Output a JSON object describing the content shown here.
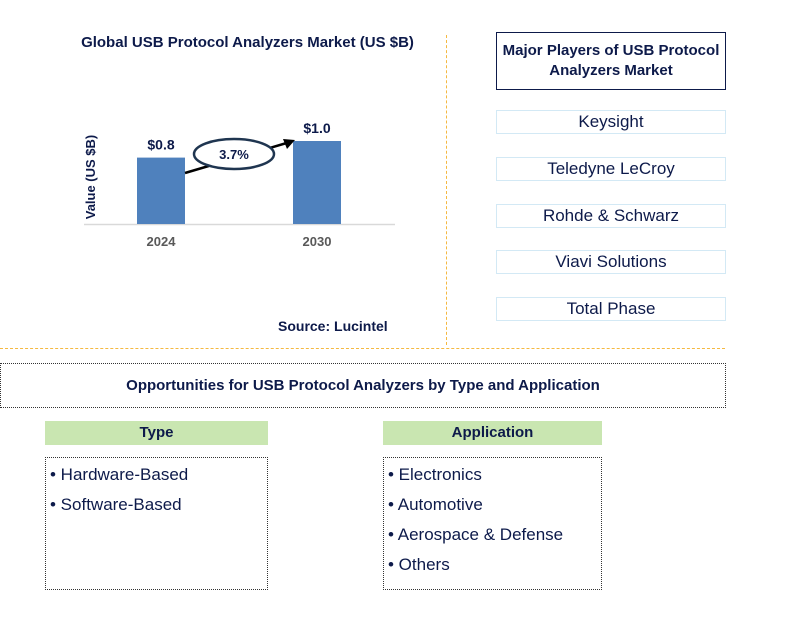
{
  "chart_data": {
    "type": "bar",
    "title": "Global USB Protocol Analyzers Market (US $B)",
    "ylabel": "Value (US $B)",
    "xlabel": "",
    "categories": [
      "2024",
      "2030"
    ],
    "values": [
      0.8,
      1.0
    ],
    "data_labels": [
      "$0.8",
      "$1.0"
    ],
    "ylim": [
      0,
      1.2
    ],
    "annotation": "3.7%",
    "colors": {
      "bar": "#4f81bd"
    }
  },
  "source": "Source: Lucintel",
  "players": {
    "title": "Major Players of USB Protocol Analyzers Market",
    "items": [
      "Keysight",
      "Teledyne LeCroy",
      "Rohde & Schwarz",
      "Viavi Solutions",
      "Total Phase"
    ]
  },
  "opportunities": {
    "title": "Opportunities for USB Protocol Analyzers by Type and Application",
    "type": {
      "header": "Type",
      "items": [
        "• Hardware-Based",
        "• Software-Based"
      ]
    },
    "application": {
      "header": "Application",
      "items": [
        "• Electronics",
        "• Automotive",
        "• Aerospace & Defense",
        "• Others"
      ]
    }
  }
}
